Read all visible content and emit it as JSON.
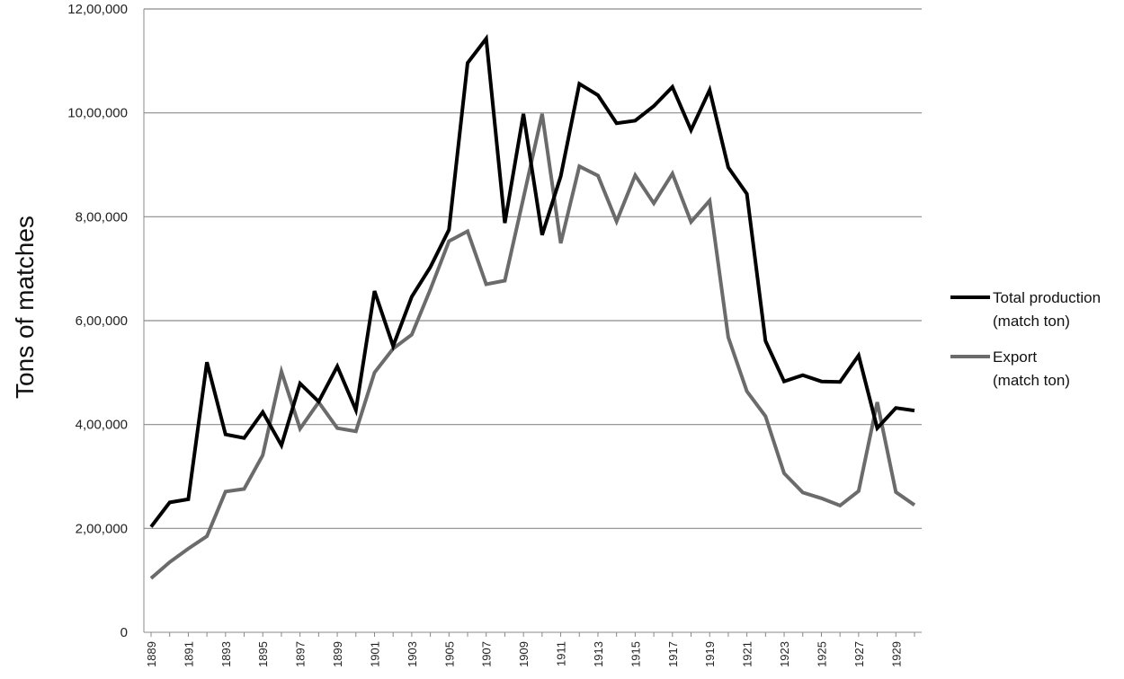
{
  "chart_data": {
    "type": "line",
    "ylabel": "Tons of matches",
    "xlabel": "",
    "title": "",
    "ylim": [
      0,
      1200000
    ],
    "yticks": [
      0,
      200000,
      400000,
      600000,
      800000,
      1000000,
      1200000
    ],
    "ytick_labels": [
      "0",
      "2,00,000",
      "4,00,000",
      "6,00,000",
      "8,00,000",
      "10,00,000",
      "12,00,000"
    ],
    "x": [
      1889,
      1890,
      1891,
      1892,
      1893,
      1894,
      1895,
      1896,
      1897,
      1898,
      1899,
      1900,
      1901,
      1902,
      1903,
      1904,
      1905,
      1906,
      1907,
      1908,
      1909,
      1910,
      1911,
      1912,
      1913,
      1914,
      1915,
      1916,
      1917,
      1918,
      1919,
      1920,
      1921,
      1922,
      1923,
      1924,
      1925,
      1926,
      1927,
      1928,
      1929,
      1930
    ],
    "xtick_labels": [
      "1889",
      "1891",
      "1893",
      "1895",
      "1897",
      "1899",
      "1901",
      "1903",
      "1905",
      "1907",
      "1909",
      "1911",
      "1913",
      "1915",
      "1917",
      "1919",
      "1921",
      "1923",
      "1925",
      "1927",
      "1929"
    ],
    "grid": "horizontal",
    "legend_position": "right",
    "series": [
      {
        "name": "Total production (match ton)",
        "name_lines": [
          "Total production",
          "(match ton)"
        ],
        "color": "#000000",
        "values": [
          203000,
          250000,
          256000,
          520000,
          381000,
          374000,
          424000,
          360000,
          479000,
          444000,
          512000,
          428000,
          657000,
          551000,
          646000,
          703000,
          775000,
          1096000,
          1143000,
          788000,
          998000,
          765000,
          878000,
          1056000,
          1034000,
          980000,
          985000,
          1013000,
          1050000,
          967000,
          1044000,
          895000,
          844000,
          561000,
          483000,
          495000,
          483000,
          482000,
          533000,
          393000,
          432000,
          427000
        ]
      },
      {
        "name": "Export (match ton)",
        "name_lines": [
          "Export",
          "(match ton)"
        ],
        "color": "#6b6b6b",
        "values": [
          104000,
          135000,
          161000,
          185000,
          271000,
          276000,
          341000,
          502000,
          392000,
          443000,
          393000,
          387000,
          500000,
          546000,
          573000,
          660000,
          753000,
          772000,
          670000,
          677000,
          836000,
          998000,
          749000,
          897000,
          879000,
          791000,
          880000,
          826000,
          883000,
          790000,
          831000,
          568000,
          464000,
          416000,
          306000,
          269000,
          258000,
          244000,
          272000,
          443000,
          270000,
          245000
        ]
      }
    ]
  }
}
